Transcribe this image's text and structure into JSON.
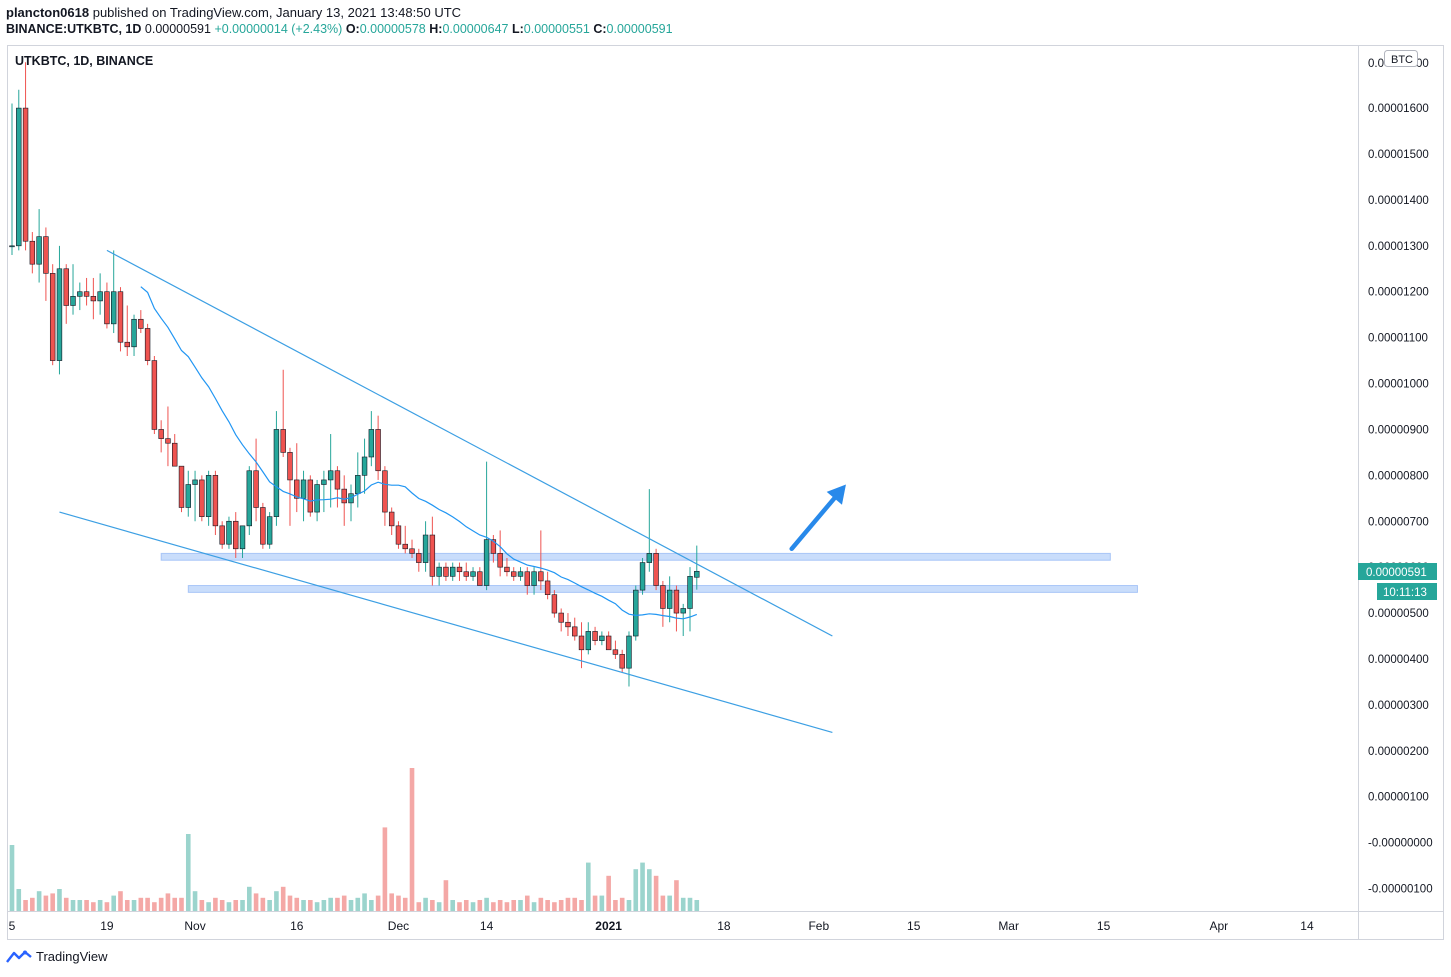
{
  "header": {
    "author": "plancton0618",
    "published_text": "published on TradingView.com, January 13, 2021 13:48:50 UTC",
    "symbol_line": "BINANCE:UTKBTC, 1D",
    "last": "0.00000591",
    "change": "+0.00000014 (+2.43%)",
    "o_label": "O:",
    "o_val": "0.00000578",
    "h_label": "H:",
    "h_val": "0.00000647",
    "l_label": "L:",
    "l_val": "0.00000551",
    "c_label": "C:",
    "c_val": "0.00000591"
  },
  "footer": {
    "brand": "TradingView"
  },
  "chart_data": {
    "type": "candlestick",
    "title": "UTKBTC, 1D, BINANCE",
    "currency_badge": "BTC",
    "price_label": "0.00000591",
    "countdown_label": "10:11:13",
    "y_unit_scale": 1e-08,
    "y_ticks": [
      "0.00001600",
      "0.00001500",
      "0.00001400",
      "0.00001300",
      "0.00001200",
      "0.00001100",
      "0.00001000",
      "0.00000900",
      "0.00000800",
      "0.00000700",
      "0.00000600",
      "0.00000500",
      "0.00000400",
      "0.00000300",
      "0.00000200",
      "0.00000100",
      "-0.00000000",
      "-0.00000100"
    ],
    "y_tick_values": [
      1600,
      1500,
      1400,
      1300,
      1200,
      1100,
      1000,
      900,
      800,
      700,
      600,
      500,
      400,
      300,
      200,
      100,
      0,
      -100
    ],
    "top_partial_label": "0.0",
    "top_partial_tail": "00",
    "x_ticks": [
      {
        "label": "5",
        "day": 0
      },
      {
        "label": "19",
        "day": 14
      },
      {
        "label": "Nov",
        "day": 27
      },
      {
        "label": "16",
        "day": 42
      },
      {
        "label": "Dec",
        "day": 57
      },
      {
        "label": "14",
        "day": 70
      },
      {
        "label": "2021",
        "day": 88
      },
      {
        "label": "18",
        "day": 105
      },
      {
        "label": "Feb",
        "day": 119
      },
      {
        "label": "15",
        "day": 133
      },
      {
        "label": "Mar",
        "day": 147
      },
      {
        "label": "15",
        "day": 161
      },
      {
        "label": "Apr",
        "day": 178
      },
      {
        "label": "14",
        "day": 191
      }
    ],
    "candles": [
      [
        1300,
        1610,
        1280,
        1300
      ],
      [
        1300,
        1640,
        1290,
        1600
      ],
      [
        1600,
        1700,
        1290,
        1310
      ],
      [
        1310,
        1330,
        1240,
        1260
      ],
      [
        1260,
        1380,
        1220,
        1320
      ],
      [
        1320,
        1340,
        1180,
        1240
      ],
      [
        1240,
        1260,
        1040,
        1050
      ],
      [
        1050,
        1300,
        1020,
        1250
      ],
      [
        1250,
        1260,
        1130,
        1170
      ],
      [
        1170,
        1260,
        1150,
        1190
      ],
      [
        1190,
        1220,
        1160,
        1200
      ],
      [
        1200,
        1230,
        1170,
        1190
      ],
      [
        1190,
        1230,
        1140,
        1180
      ],
      [
        1180,
        1240,
        1150,
        1200
      ],
      [
        1200,
        1220,
        1120,
        1130
      ],
      [
        1130,
        1290,
        1110,
        1200
      ],
      [
        1200,
        1210,
        1070,
        1090
      ],
      [
        1090,
        1170,
        1060,
        1080
      ],
      [
        1080,
        1150,
        1060,
        1140
      ],
      [
        1140,
        1160,
        1110,
        1120
      ],
      [
        1120,
        1130,
        1040,
        1050
      ],
      [
        1050,
        1060,
        890,
        900
      ],
      [
        900,
        920,
        850,
        880
      ],
      [
        880,
        950,
        820,
        870
      ],
      [
        870,
        890,
        820,
        820
      ],
      [
        820,
        820,
        720,
        730
      ],
      [
        730,
        810,
        710,
        780
      ],
      [
        780,
        810,
        700,
        790
      ],
      [
        790,
        800,
        700,
        710
      ],
      [
        710,
        810,
        690,
        800
      ],
      [
        800,
        810,
        670,
        690
      ],
      [
        690,
        700,
        640,
        650
      ],
      [
        650,
        710,
        640,
        700
      ],
      [
        700,
        720,
        620,
        640
      ],
      [
        640,
        690,
        620,
        690
      ],
      [
        690,
        820,
        670,
        810
      ],
      [
        810,
        880,
        700,
        730
      ],
      [
        730,
        740,
        640,
        650
      ],
      [
        650,
        720,
        640,
        710
      ],
      [
        710,
        940,
        690,
        900
      ],
      [
        900,
        1030,
        840,
        850
      ],
      [
        850,
        860,
        690,
        790
      ],
      [
        790,
        870,
        720,
        750
      ],
      [
        750,
        810,
        700,
        790
      ],
      [
        790,
        800,
        710,
        720
      ],
      [
        720,
        790,
        700,
        780
      ],
      [
        780,
        810,
        720,
        790
      ],
      [
        790,
        890,
        730,
        810
      ],
      [
        810,
        820,
        730,
        770
      ],
      [
        770,
        800,
        690,
        740
      ],
      [
        740,
        780,
        700,
        760
      ],
      [
        760,
        850,
        730,
        800
      ],
      [
        800,
        880,
        760,
        840
      ],
      [
        840,
        940,
        820,
        900
      ],
      [
        900,
        930,
        790,
        810
      ],
      [
        810,
        820,
        690,
        720
      ],
      [
        720,
        730,
        670,
        690
      ],
      [
        690,
        700,
        640,
        650
      ],
      [
        650,
        690,
        630,
        640
      ],
      [
        640,
        660,
        620,
        630
      ],
      [
        630,
        640,
        590,
        610
      ],
      [
        610,
        700,
        590,
        670
      ],
      [
        670,
        710,
        560,
        580
      ],
      [
        580,
        610,
        560,
        600
      ],
      [
        600,
        610,
        570,
        580
      ],
      [
        580,
        610,
        570,
        600
      ],
      [
        600,
        610,
        570,
        590
      ],
      [
        590,
        610,
        570,
        580
      ],
      [
        580,
        600,
        570,
        590
      ],
      [
        590,
        600,
        560,
        560
      ],
      [
        560,
        830,
        550,
        660
      ],
      [
        660,
        670,
        610,
        630
      ],
      [
        630,
        680,
        580,
        600
      ],
      [
        600,
        620,
        580,
        590
      ],
      [
        590,
        600,
        570,
        580
      ],
      [
        580,
        600,
        570,
        590
      ],
      [
        590,
        600,
        540,
        560
      ],
      [
        560,
        600,
        540,
        590
      ],
      [
        590,
        680,
        550,
        570
      ],
      [
        570,
        590,
        530,
        540
      ],
      [
        540,
        550,
        490,
        500
      ],
      [
        500,
        510,
        460,
        480
      ],
      [
        480,
        500,
        450,
        470
      ],
      [
        470,
        490,
        440,
        450
      ],
      [
        450,
        480,
        380,
        420
      ],
      [
        420,
        480,
        410,
        460
      ],
      [
        460,
        470,
        430,
        440
      ],
      [
        440,
        460,
        430,
        450
      ],
      [
        450,
        460,
        420,
        420
      ],
      [
        420,
        440,
        400,
        410
      ],
      [
        410,
        420,
        370,
        380
      ],
      [
        380,
        460,
        340,
        450
      ],
      [
        450,
        560,
        440,
        550
      ],
      [
        550,
        620,
        540,
        610
      ],
      [
        610,
        770,
        590,
        630
      ],
      [
        630,
        640,
        550,
        560
      ],
      [
        560,
        570,
        470,
        510
      ],
      [
        510,
        580,
        480,
        550
      ],
      [
        550,
        560,
        460,
        500
      ],
      [
        500,
        520,
        450,
        510
      ],
      [
        510,
        600,
        460,
        580
      ],
      [
        578,
        647,
        551,
        591
      ]
    ],
    "volume_ratio": [
      0.3,
      0.1,
      0.05,
      0.06,
      0.09,
      0.07,
      0.08,
      0.1,
      0.06,
      0.05,
      0.05,
      0.05,
      0.04,
      0.05,
      0.04,
      0.07,
      0.09,
      0.05,
      0.05,
      0.06,
      0.06,
      0.04,
      0.06,
      0.08,
      0.06,
      0.06,
      0.05,
      0.09,
      0.05,
      0.04,
      0.06,
      0.05,
      0.04,
      0.05,
      0.05,
      0.11,
      0.08,
      0.06,
      0.05,
      0.09,
      0.11,
      0.07,
      0.06,
      0.05,
      0.05,
      0.04,
      0.05,
      0.06,
      0.06,
      0.07,
      0.05,
      0.06,
      0.08,
      0.05,
      0.07,
      0.07,
      0.08,
      0.07,
      0.06,
      0.05,
      0.04,
      0.06,
      0.05,
      0.04,
      0.05,
      0.05,
      0.04,
      0.05,
      0.04,
      0.05,
      0.06,
      0.04,
      0.05,
      0.04,
      0.05,
      0.05,
      0.07,
      0.04,
      0.06,
      0.05,
      0.04,
      0.05,
      0.06,
      0.06,
      0.05,
      0.05,
      0.07,
      0.07,
      0.06,
      0.05,
      0.06,
      0.05,
      0.06,
      0.09,
      0.07,
      0.08,
      0.07,
      0.07,
      0.06,
      0.06,
      0.06,
      0.05
    ],
    "volume_bars_fixed": {
      "26": 0.35,
      "55": 0.38,
      "59": 0.65,
      "64": 0.14,
      "85": 0.22,
      "88": 0.16,
      "92": 0.19,
      "93": 0.22,
      "94": 0.19,
      "95": 0.16,
      "98": 0.14
    },
    "ma_start_index": 19,
    "drawings": {
      "resistance_line": {
        "from": [
          14,
          1290
        ],
        "to": [
          121,
          450
        ]
      },
      "support_line": {
        "from": [
          7,
          720
        ],
        "to": [
          121,
          240
        ]
      },
      "zone_upper": {
        "from_day": 22,
        "to_day": 162,
        "low": 615,
        "high": 630
      },
      "zone_lower": {
        "from_day": 26,
        "to_day": 166,
        "low": 545,
        "high": 560
      },
      "arrow": {
        "from": [
          115,
          640
        ],
        "to": [
          123,
          780
        ]
      }
    },
    "colors": {
      "up": "#26a69a",
      "down": "#ef5350",
      "vol_up": "#9bd4cd",
      "vol_down": "#f4a8a6",
      "ma": "#2196f3",
      "trend": "#3c9fe3",
      "zone": "rgba(120,170,245,0.40)",
      "arrow": "#2889ea"
    }
  }
}
